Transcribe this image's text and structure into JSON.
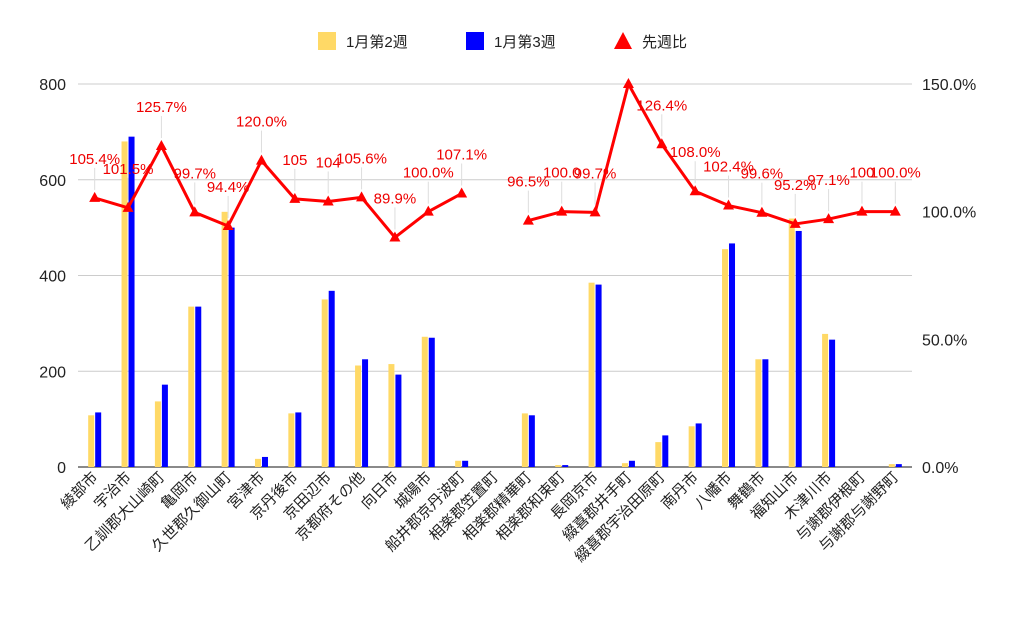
{
  "chart_data": {
    "type": "bar+line",
    "title": "",
    "categories": [
      "綾部市",
      "宇治市",
      "乙訓郡大山崎町",
      "亀岡市",
      "久世郡久御山町",
      "宮津市",
      "京丹後市",
      "京田辺市",
      "京都府その他",
      "向日市",
      "城陽市",
      "船井郡京丹波町",
      "相楽郡笠置町",
      "相楽郡精華町",
      "相楽郡和束町",
      "長岡京市",
      "綴喜郡井手町",
      "綴喜郡宇治田原町",
      "南丹市",
      "八幡市",
      "舞鶴市",
      "福知山市",
      "木津川市",
      "与謝郡伊根町",
      "与謝郡与謝野町"
    ],
    "series": [
      {
        "name": "1月第2週",
        "type": "bar",
        "axis": "left",
        "color": "#ffd966",
        "values": [
          108,
          680,
          137,
          335,
          533,
          17,
          112,
          350,
          212,
          215,
          272,
          13,
          0,
          112,
          4,
          385,
          8,
          52,
          85,
          455,
          225,
          519,
          278,
          0,
          6
        ]
      },
      {
        "name": "1月第3週",
        "type": "bar",
        "axis": "left",
        "color": "#0000ff",
        "values": [
          114,
          690,
          172,
          335,
          500,
          21,
          114,
          368,
          225,
          193,
          270,
          13,
          0,
          108,
          4,
          381,
          13,
          66,
          91,
          467,
          225,
          493,
          266,
          0,
          6
        ]
      },
      {
        "name": "先週比",
        "type": "line",
        "axis": "right",
        "color": "#ff0000",
        "values": [
          105.4,
          101.5,
          125.7,
          99.7,
          94.4,
          120.0,
          105.0,
          104.0,
          105.6,
          89.9,
          100.0,
          107.1,
          null,
          96.5,
          100.0,
          99.7,
          150.0,
          126.4,
          108.0,
          102.4,
          99.6,
          95.2,
          97.1,
          100.0,
          100.0
        ],
        "labels": [
          "105.4%",
          "101.5%",
          "125.7%",
          "99.7%",
          "94.4%",
          "120.0%",
          "105",
          "104",
          "105.6%",
          "89.9%",
          "100.0%",
          "107.1%",
          "",
          "96.5%",
          "100.0",
          "99.7%",
          "",
          "126.4%",
          "108.0%",
          "102.4%",
          "99.6%",
          "95.2%",
          "97.1%",
          "100",
          "100.0%"
        ]
      }
    ],
    "y_left": {
      "min": 0,
      "max": 800,
      "ticks": [
        "0",
        "200",
        "400",
        "600",
        "800"
      ]
    },
    "y_right": {
      "min": 0,
      "max": 150,
      "ticks": [
        "0.0%",
        "50.0%",
        "100.0%",
        "150.0%"
      ]
    },
    "grid": true,
    "legend_position": "top-center"
  }
}
